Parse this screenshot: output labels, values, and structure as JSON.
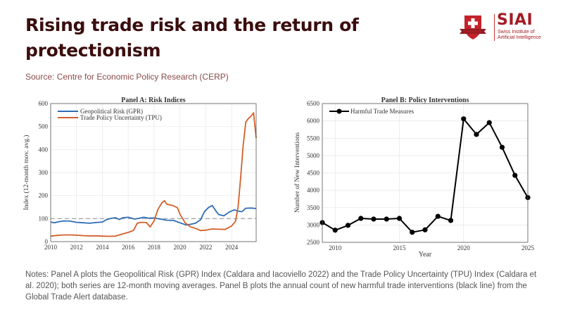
{
  "header": {
    "title": "Rising trade risk and the return of protectionism",
    "source": "Source: Centre for Economic Policy Research (CERP)"
  },
  "logo": {
    "name": "SIAI",
    "subtitle_line1": "Swiss Institute of",
    "subtitle_line2": "Artificial Intelligence",
    "color": "#a51c24"
  },
  "notes": "Notes: Panel A plots the Geopolitical Risk (GPR) Index (Caldara and Iacoviello 2022) and the Trade Policy Uncertainty (TPU) Index (Caldara et al. 2020); both series are 12-month moving averages. Panel B plots the annual count of new harmful trade interventions (black line) from the Global Trade Alert database.",
  "chart_data": [
    {
      "type": "line",
      "title": "Panel A: Risk Indices",
      "xlabel": "",
      "ylabel": "Index (12-month mov. avg.)",
      "xlim": [
        2010,
        2025.9
      ],
      "ylim": [
        0,
        600
      ],
      "xticks": [
        2010,
        2012,
        2014,
        2016,
        2018,
        2020,
        2022,
        2024
      ],
      "yticks": [
        0,
        100,
        200,
        300,
        400,
        500,
        600
      ],
      "grid": true,
      "legend": "top-left",
      "reference_line": {
        "y": 100,
        "style": "dashed",
        "color": "#999999"
      },
      "series": [
        {
          "name": "Geopolitical Risk (GPR)",
          "color": "#2f6db5",
          "x": [
            2010,
            2010.3,
            2010.6,
            2011,
            2011.5,
            2012,
            2012.5,
            2013,
            2013.5,
            2014,
            2014.3,
            2014.6,
            2015,
            2015.3,
            2015.6,
            2016,
            2016.5,
            2016.8,
            2017.2,
            2017.6,
            2018,
            2018.5,
            2019,
            2019.5,
            2020,
            2020.5,
            2020.8,
            2021.2,
            2021.6,
            2021.9,
            2022.2,
            2022.5,
            2022.8,
            2023,
            2023.4,
            2023.8,
            2024.2,
            2024.5,
            2024.8,
            2025.1,
            2025.5,
            2025.9
          ],
          "values": [
            85,
            82,
            86,
            90,
            89,
            84,
            82,
            80,
            83,
            85,
            95,
            100,
            104,
            96,
            104,
            106,
            98,
            101,
            106,
            102,
            103,
            98,
            93,
            92,
            82,
            72,
            75,
            80,
            95,
            130,
            148,
            157,
            132,
            118,
            112,
            128,
            138,
            133,
            130,
            145,
            146,
            144
          ]
        },
        {
          "name": "Trade Policy Uncertainty (TPU)",
          "color": "#d35f2a",
          "x": [
            2010,
            2010.5,
            2011,
            2011.5,
            2012,
            2012.5,
            2013,
            2013.5,
            2014,
            2014.5,
            2015,
            2015.5,
            2016,
            2016.4,
            2016.7,
            2017,
            2017.4,
            2017.7,
            2018,
            2018.3,
            2018.6,
            2018.8,
            2019,
            2019.4,
            2019.8,
            2020,
            2020.4,
            2020.8,
            2021.2,
            2021.6,
            2022,
            2022.5,
            2023,
            2023.5,
            2024,
            2024.3,
            2024.5,
            2024.7,
            2024.9,
            2025.1,
            2025.3,
            2025.5,
            2025.7,
            2025.9
          ],
          "values": [
            24,
            27,
            29,
            29,
            28,
            26,
            25,
            25,
            24,
            23,
            24,
            32,
            40,
            48,
            80,
            84,
            83,
            64,
            90,
            140,
            168,
            178,
            162,
            158,
            148,
            120,
            82,
            65,
            58,
            48,
            50,
            55,
            54,
            53,
            68,
            88,
            150,
            280,
            420,
            520,
            535,
            545,
            560,
            450
          ]
        }
      ]
    },
    {
      "type": "line",
      "title": "Panel B: Policy Interventions",
      "xlabel": "Year",
      "ylabel": "Number of New Interventions",
      "xlim": [
        2009,
        2025
      ],
      "ylim": [
        2500,
        6500
      ],
      "xticks": [
        2010,
        2015,
        2020,
        2025
      ],
      "yticks": [
        2500,
        3000,
        3500,
        4000,
        4500,
        5000,
        5500,
        6000,
        6500
      ],
      "grid": true,
      "legend": "top-left",
      "series": [
        {
          "name": "Harmful Trade Measures",
          "color": "#000000",
          "marker": "circle",
          "x": [
            2009,
            2010,
            2011,
            2012,
            2013,
            2014,
            2015,
            2016,
            2017,
            2018,
            2019,
            2020,
            2021,
            2022,
            2023,
            2024,
            2025
          ],
          "values": [
            3070,
            2850,
            2990,
            3190,
            3170,
            3170,
            3190,
            2790,
            2860,
            3250,
            3130,
            6060,
            5610,
            5950,
            5240,
            4430,
            3790
          ]
        }
      ]
    }
  ]
}
